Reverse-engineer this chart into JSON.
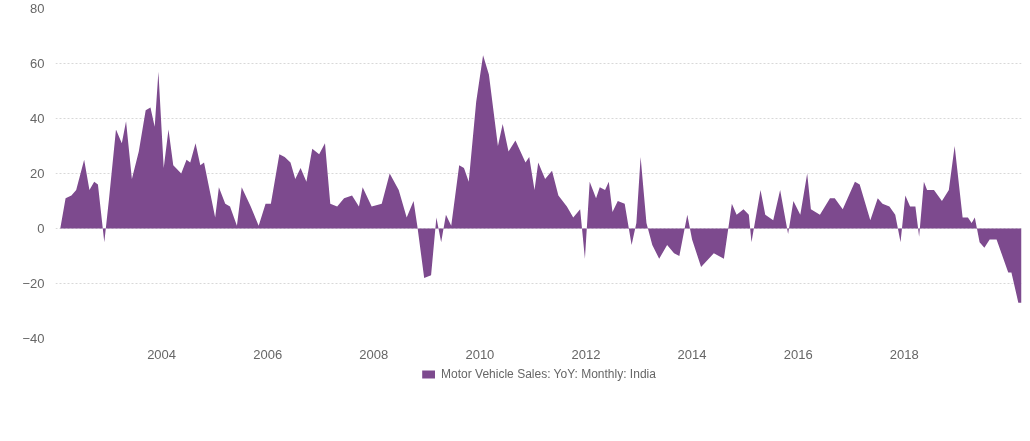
{
  "chart_data": {
    "type": "area",
    "x": [
      2002.09,
      2002.19,
      2002.3,
      2002.39,
      2002.54,
      2002.64,
      2002.73,
      2002.8,
      2002.92,
      2003.01,
      2003.14,
      2003.25,
      2003.33,
      2003.44,
      2003.57,
      2003.7,
      2003.79,
      2003.87,
      2003.94,
      2004.04,
      2004.13,
      2004.22,
      2004.37,
      2004.47,
      2004.54,
      2004.64,
      2004.73,
      2004.8,
      2005.01,
      2005.08,
      2005.2,
      2005.29,
      2005.42,
      2005.51,
      2005.68,
      2005.83,
      2005.96,
      2006.06,
      2006.22,
      2006.32,
      2006.43,
      2006.52,
      2006.62,
      2006.73,
      2006.84,
      2006.97,
      2007.08,
      2007.18,
      2007.31,
      2007.44,
      2007.59,
      2007.72,
      2007.79,
      2007.96,
      2008.15,
      2008.3,
      2008.47,
      2008.62,
      2008.75,
      2008.82,
      2008.95,
      2009.08,
      2009.18,
      2009.27,
      2009.36,
      2009.46,
      2009.61,
      2009.7,
      2009.79,
      2009.93,
      2010.06,
      2010.17,
      2010.34,
      2010.43,
      2010.54,
      2010.67,
      2010.86,
      2010.93,
      2011.03,
      2011.1,
      2011.23,
      2011.36,
      2011.48,
      2011.64,
      2011.76,
      2011.89,
      2011.98,
      2012.07,
      2012.19,
      2012.26,
      2012.36,
      2012.43,
      2012.5,
      2012.6,
      2012.73,
      2012.86,
      2012.95,
      2013.03,
      2013.14,
      2013.25,
      2013.38,
      2013.53,
      2013.66,
      2013.76,
      2013.91,
      2014.0,
      2014.17,
      2014.41,
      2014.6,
      2014.75,
      2014.84,
      2014.97,
      2015.07,
      2015.12,
      2015.29,
      2015.38,
      2015.53,
      2015.66,
      2015.81,
      2015.91,
      2016.04,
      2016.17,
      2016.24,
      2016.41,
      2016.6,
      2016.69,
      2016.84,
      2017.07,
      2017.16,
      2017.36,
      2017.5,
      2017.59,
      2017.72,
      2017.83,
      2017.93,
      2018.02,
      2018.11,
      2018.21,
      2018.28,
      2018.37,
      2018.43,
      2018.56,
      2018.71,
      2018.84,
      2018.95,
      2019.1,
      2019.2,
      2019.27,
      2019.33,
      2019.42,
      2019.51,
      2019.61,
      2019.74,
      2019.96,
      2020.02,
      2020.15,
      2020.21
    ],
    "series": [
      {
        "name": "Motor Vehicle Sales: YoY: Monthly: India",
        "color": "#7d4a8e",
        "values": [
          0,
          11,
          12,
          14,
          25,
          14,
          17,
          16,
          -5,
          11,
          36,
          31,
          39,
          18,
          28,
          43,
          44,
          37,
          57,
          22,
          36,
          23,
          20,
          25,
          24,
          31,
          23,
          24,
          4,
          15,
          9,
          8,
          1,
          15,
          8,
          1,
          9,
          9,
          27,
          26,
          24,
          18,
          22,
          17,
          29,
          27,
          31,
          9,
          8,
          11,
          12,
          8,
          15,
          8,
          9,
          20,
          14,
          4,
          10,
          1,
          -18,
          -17,
          4,
          -5,
          5,
          1,
          23,
          22,
          17,
          46,
          63,
          56,
          30,
          38,
          28,
          32,
          24,
          26,
          14,
          24,
          18,
          21,
          12,
          8,
          4,
          7,
          -11,
          17,
          11,
          15,
          14,
          17,
          6,
          10,
          9,
          -6,
          2,
          26,
          2,
          -6,
          -11,
          -6,
          -9,
          -10,
          5,
          -4,
          -14,
          -9,
          -11,
          9,
          5,
          7,
          5,
          -5,
          14,
          5,
          3,
          14,
          -2,
          10,
          5,
          20,
          7,
          5,
          11,
          11,
          7,
          17,
          16,
          3,
          11,
          9,
          8,
          5,
          -5,
          12,
          8,
          8,
          -3,
          17,
          14,
          14,
          10,
          14,
          30,
          4,
          4,
          2,
          4,
          -5,
          -7,
          -4,
          -4,
          -16,
          -16,
          -27,
          -27
        ]
      }
    ],
    "xlim": [
      2002.0,
      2020.21
    ],
    "xticks": [
      2004,
      2006,
      2008,
      2010,
      2012,
      2014,
      2016,
      2018
    ],
    "ylim": [
      -40,
      80
    ],
    "yticks": [
      -40,
      -20,
      0,
      20,
      40,
      60,
      80
    ],
    "grid": "y",
    "legend": "bottom"
  }
}
